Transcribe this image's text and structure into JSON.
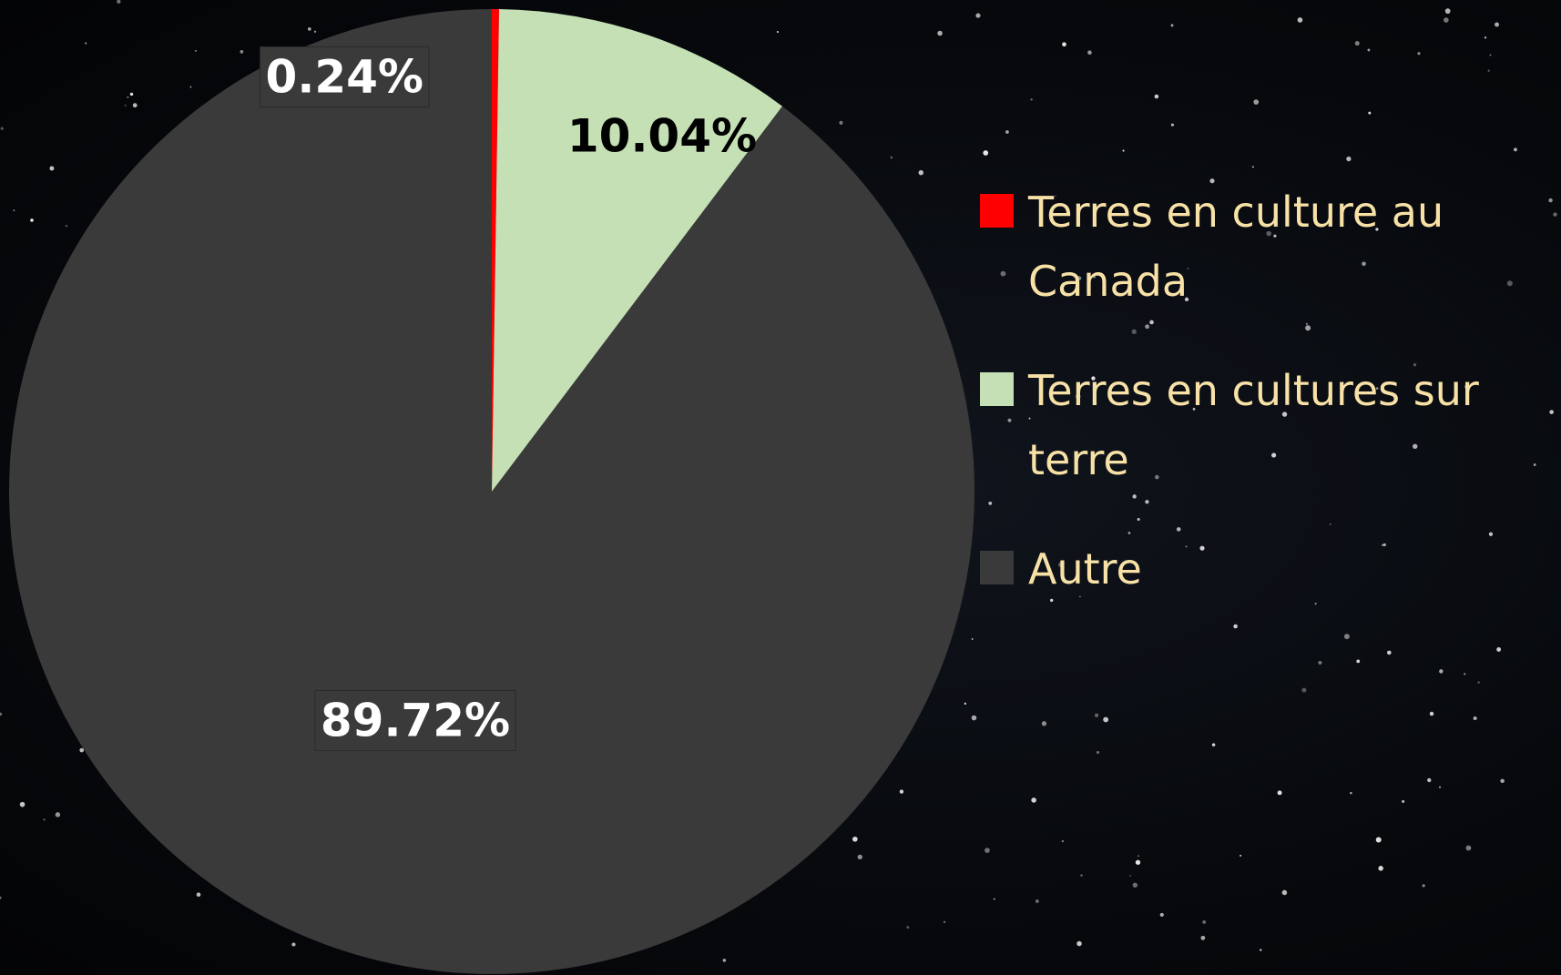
{
  "chart_data": {
    "type": "pie",
    "categories": [
      "Terres en culture au Canada",
      "Terres en cultures sur terre",
      "Autre"
    ],
    "values": [
      0.24,
      10.04,
      89.72
    ],
    "value_labels": [
      "0.24%",
      "10.04%",
      "89.72%"
    ],
    "colors": [
      "#ff0000",
      "#c4e0b4",
      "#3a3a3a"
    ],
    "legend": "right"
  }
}
